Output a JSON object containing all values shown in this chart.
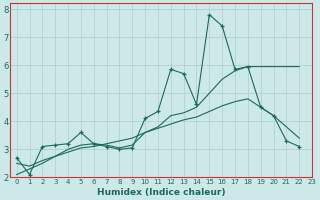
{
  "xlabel": "Humidex (Indice chaleur)",
  "bg_color": "#cce8e8",
  "grid_color": "#b0cccc",
  "line_color": "#1a6b5a",
  "spine_color": "#cc3333",
  "xlim": [
    -0.5,
    23
  ],
  "ylim": [
    2,
    8.2
  ],
  "yticks": [
    2,
    3,
    4,
    5,
    6,
    7,
    8
  ],
  "xticks": [
    0,
    1,
    2,
    3,
    4,
    5,
    6,
    7,
    8,
    9,
    10,
    11,
    12,
    13,
    14,
    15,
    16,
    17,
    18,
    19,
    20,
    21,
    22,
    23
  ],
  "series1_x": [
    0,
    1,
    2,
    3,
    4,
    5,
    6,
    7,
    8,
    9,
    10,
    11,
    12,
    13,
    14,
    15,
    16,
    17,
    18,
    19,
    20,
    21,
    22
  ],
  "series1_y": [
    2.7,
    2.1,
    3.1,
    3.15,
    3.2,
    3.6,
    3.2,
    3.1,
    3.0,
    3.05,
    4.1,
    4.35,
    5.85,
    5.7,
    4.6,
    7.8,
    7.4,
    5.85,
    5.95,
    4.5,
    4.2,
    3.3,
    3.1
  ],
  "series2_x": [
    0,
    2,
    4,
    5,
    6,
    7,
    8,
    9,
    10,
    11,
    12,
    13,
    14,
    15,
    16,
    17,
    18,
    19,
    20,
    21,
    22
  ],
  "series2_y": [
    2.1,
    2.5,
    3.0,
    3.15,
    3.2,
    3.15,
    3.05,
    3.15,
    3.6,
    3.8,
    4.2,
    4.3,
    4.5,
    5.0,
    5.5,
    5.8,
    5.95,
    5.95,
    5.95,
    5.95,
    5.95
  ],
  "series3_x": [
    0,
    1,
    2,
    3,
    4,
    5,
    6,
    7,
    8,
    9,
    10,
    11,
    12,
    13,
    14,
    15,
    16,
    17,
    18,
    19,
    20,
    21,
    22
  ],
  "series3_y": [
    2.5,
    2.4,
    2.6,
    2.75,
    2.9,
    3.05,
    3.1,
    3.2,
    3.3,
    3.4,
    3.6,
    3.75,
    3.9,
    4.05,
    4.15,
    4.35,
    4.55,
    4.7,
    4.8,
    4.5,
    4.2,
    3.8,
    3.4
  ]
}
